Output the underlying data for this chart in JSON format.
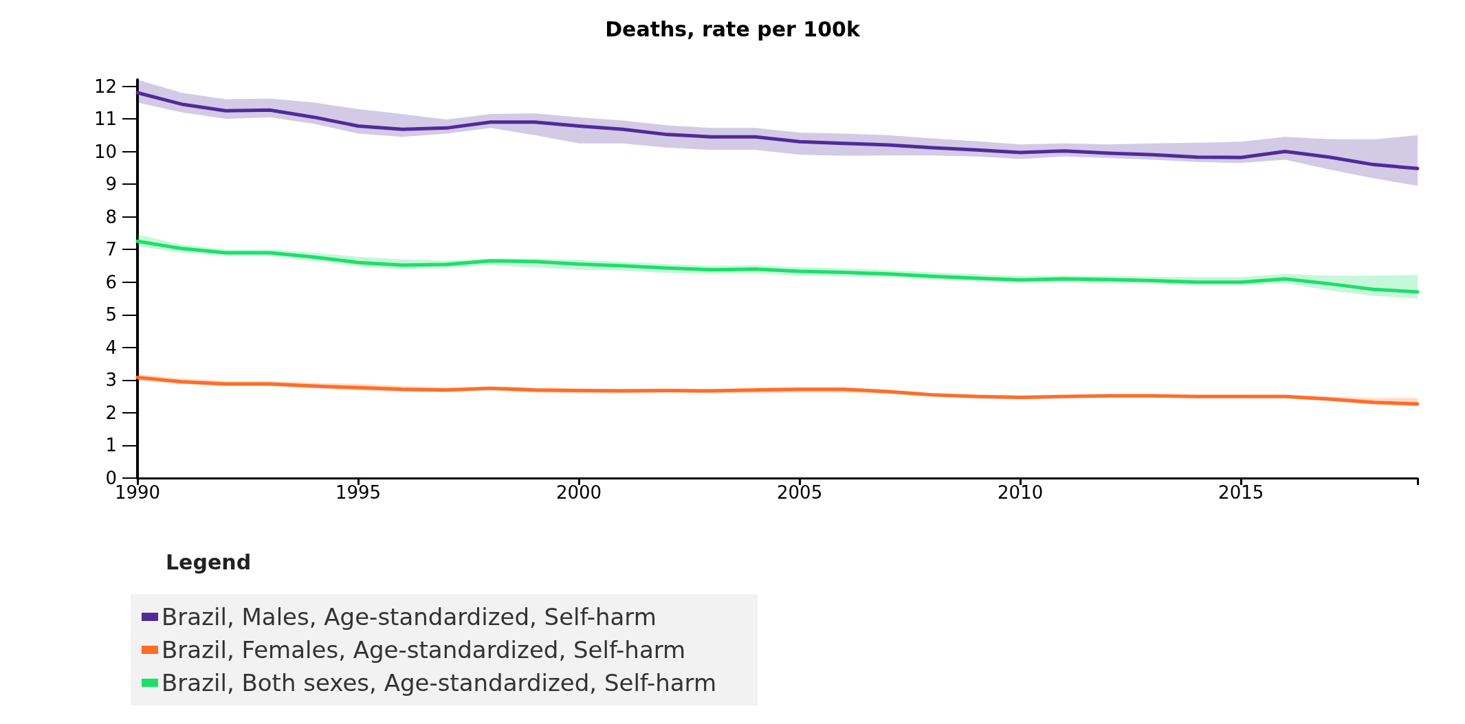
{
  "chart_data": {
    "type": "line",
    "title": "Deaths, rate per 100k",
    "legend_title": "Legend",
    "legend": "bottom",
    "grid": false,
    "marker": "none",
    "line_style": "solid",
    "x": [
      1990,
      1991,
      1992,
      1993,
      1994,
      1995,
      1996,
      1997,
      1998,
      1999,
      2000,
      2001,
      2002,
      2003,
      2004,
      2005,
      2006,
      2007,
      2008,
      2009,
      2010,
      2011,
      2012,
      2013,
      2014,
      2015,
      2016,
      2017,
      2018,
      2019
    ],
    "xlim": [
      1990,
      2019
    ],
    "xticks": [
      1990,
      1995,
      2000,
      2005,
      2010,
      2015,
      {
        "value": 2019,
        "label": null
      }
    ],
    "ylim": [
      0,
      12.2
    ],
    "yticks": [
      0,
      1,
      2,
      3,
      4,
      5,
      6,
      7,
      8,
      9,
      10,
      11,
      12
    ],
    "series": [
      {
        "name": "Brazil, Males, Age-standardized, Self-harm",
        "color": "#512a9b",
        "values": [
          11.8,
          11.45,
          11.25,
          11.27,
          11.05,
          10.78,
          10.68,
          10.72,
          10.9,
          10.9,
          10.78,
          10.68,
          10.52,
          10.45,
          10.45,
          10.3,
          10.25,
          10.2,
          10.12,
          10.05,
          9.97,
          10.02,
          9.95,
          9.9,
          9.83,
          9.82,
          10.0,
          9.83,
          9.6,
          9.48
        ],
        "lower": [
          11.5,
          11.2,
          11.0,
          11.05,
          10.85,
          10.55,
          10.45,
          10.55,
          10.72,
          10.5,
          10.25,
          10.25,
          10.12,
          10.05,
          10.05,
          9.9,
          9.87,
          9.88,
          9.88,
          9.85,
          9.77,
          9.85,
          9.8,
          9.75,
          9.68,
          9.65,
          9.75,
          9.45,
          9.18,
          8.95
        ],
        "upper": [
          12.2,
          11.8,
          11.6,
          11.62,
          11.5,
          11.3,
          11.15,
          10.98,
          11.15,
          11.17,
          11.05,
          10.95,
          10.8,
          10.72,
          10.72,
          10.58,
          10.55,
          10.5,
          10.4,
          10.32,
          10.22,
          10.25,
          10.22,
          10.25,
          10.27,
          10.3,
          10.45,
          10.38,
          10.37,
          10.5
        ]
      },
      {
        "name": "Brazil, Females, Age-standardized, Self-harm",
        "color": "#ff6d26",
        "values": [
          3.08,
          2.95,
          2.88,
          2.88,
          2.82,
          2.77,
          2.72,
          2.7,
          2.75,
          2.7,
          2.68,
          2.67,
          2.68,
          2.67,
          2.7,
          2.72,
          2.72,
          2.65,
          2.55,
          2.5,
          2.47,
          2.5,
          2.52,
          2.52,
          2.5,
          2.5,
          2.5,
          2.42,
          2.32,
          2.27
        ],
        "lower": [
          3.0,
          2.88,
          2.82,
          2.82,
          2.75,
          2.68,
          2.64,
          2.63,
          2.68,
          2.62,
          2.6,
          2.6,
          2.62,
          2.6,
          2.6,
          2.62,
          2.62,
          2.58,
          2.5,
          2.45,
          2.42,
          2.45,
          2.47,
          2.47,
          2.45,
          2.45,
          2.45,
          2.37,
          2.25,
          2.2
        ],
        "upper": [
          3.18,
          3.05,
          2.97,
          2.97,
          2.92,
          2.88,
          2.82,
          2.77,
          2.8,
          2.76,
          2.74,
          2.73,
          2.74,
          2.73,
          2.76,
          2.78,
          2.78,
          2.7,
          2.6,
          2.56,
          2.53,
          2.56,
          2.57,
          2.57,
          2.55,
          2.55,
          2.56,
          2.5,
          2.45,
          2.45
        ]
      },
      {
        "name": "Brazil, Both sexes, Age-standardized, Self-harm",
        "color": "#1ddf6a",
        "values": [
          7.25,
          7.03,
          6.9,
          6.9,
          6.77,
          6.6,
          6.52,
          6.54,
          6.65,
          6.63,
          6.55,
          6.5,
          6.43,
          6.38,
          6.4,
          6.33,
          6.3,
          6.25,
          6.18,
          6.12,
          6.07,
          6.1,
          6.08,
          6.05,
          6.0,
          6.0,
          6.1,
          5.95,
          5.78,
          5.7
        ],
        "lower": [
          7.1,
          6.9,
          6.8,
          6.8,
          6.65,
          6.48,
          6.4,
          6.43,
          6.52,
          6.45,
          6.38,
          6.35,
          6.28,
          6.25,
          6.27,
          6.2,
          6.18,
          6.15,
          6.08,
          6.03,
          5.98,
          6.0,
          5.97,
          5.95,
          5.9,
          5.9,
          5.97,
          5.75,
          5.58,
          5.5
        ],
        "upper": [
          7.45,
          7.15,
          7.0,
          7.0,
          6.9,
          6.78,
          6.7,
          6.65,
          6.72,
          6.72,
          6.68,
          6.62,
          6.56,
          6.5,
          6.52,
          6.45,
          6.42,
          6.37,
          6.3,
          6.24,
          6.18,
          6.2,
          6.18,
          6.17,
          6.15,
          6.15,
          6.25,
          6.2,
          6.2,
          6.22
        ]
      }
    ]
  }
}
